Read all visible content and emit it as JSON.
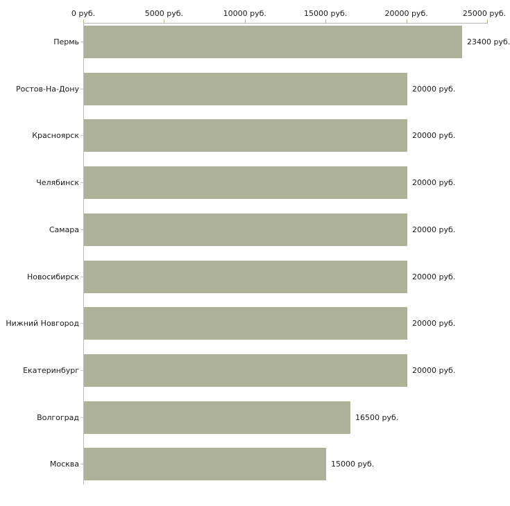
{
  "chart_data": {
    "type": "bar",
    "orientation": "horizontal",
    "title": "",
    "xlabel": "",
    "ylabel": "",
    "categories": [
      "Пермь",
      "Ростов-На-Дону",
      "Красноярск",
      "Челябинск",
      "Самара",
      "Новосибирск",
      "Нижний Новгород",
      "Екатеринбург",
      "Волгоград",
      "Москва"
    ],
    "values": [
      23400,
      20000,
      20000,
      20000,
      20000,
      20000,
      20000,
      20000,
      16500,
      15000
    ],
    "value_labels": [
      "23400 руб.",
      "20000 руб.",
      "20000 руб.",
      "20000 руб.",
      "20000 руб.",
      "20000 руб.",
      "20000 руб.",
      "20000 руб.",
      "16500 руб.",
      "15000 руб."
    ],
    "x_axis": {
      "position": "top",
      "range": [
        0,
        25000
      ],
      "ticks": [
        0,
        5000,
        10000,
        15000,
        20000,
        25000
      ],
      "tick_labels": [
        "0 руб.",
        "5000 руб.",
        "10000 руб.",
        "15000 руб.",
        "20000 руб.",
        "25000 руб."
      ]
    },
    "legend": null,
    "grid": false,
    "colors": {
      "bar": "#acb198",
      "axis_line": "#b9b9b9",
      "axis_tick": "#b2b28a",
      "category_tick": "#c9c5a4",
      "text": "#1a1a1a",
      "background": "#ffffff"
    }
  }
}
